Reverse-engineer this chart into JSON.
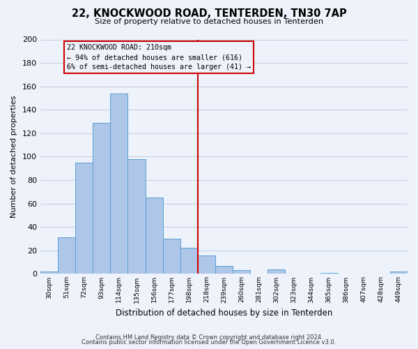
{
  "title": "22, KNOCKWOOD ROAD, TENTERDEN, TN30 7AP",
  "subtitle": "Size of property relative to detached houses in Tenterden",
  "xlabel": "Distribution of detached houses by size in Tenterden",
  "ylabel": "Number of detached properties",
  "footer_line1": "Contains HM Land Registry data © Crown copyright and database right 2024.",
  "footer_line2": "Contains public sector information licensed under the Open Government Licence v3.0.",
  "bin_labels": [
    "30sqm",
    "51sqm",
    "72sqm",
    "93sqm",
    "114sqm",
    "135sqm",
    "156sqm",
    "177sqm",
    "198sqm",
    "218sqm",
    "239sqm",
    "260sqm",
    "281sqm",
    "302sqm",
    "323sqm",
    "344sqm",
    "365sqm",
    "386sqm",
    "407sqm",
    "428sqm",
    "449sqm"
  ],
  "bar_heights": [
    2,
    31,
    95,
    129,
    154,
    98,
    65,
    30,
    22,
    16,
    7,
    3,
    0,
    4,
    0,
    0,
    1,
    0,
    0,
    0,
    2
  ],
  "bar_color": "#aec6e8",
  "bar_edge_color": "#5a9fd4",
  "ylim": [
    0,
    200
  ],
  "yticks": [
    0,
    20,
    40,
    60,
    80,
    100,
    120,
    140,
    160,
    180,
    200
  ],
  "vline_x_index": 8.5,
  "vline_color": "#cc0000",
  "annot_line1": "22 KNOCKWOOD ROAD: 210sqm",
  "annot_line2": "← 94% of detached houses are smaller (616)",
  "annot_line3": "6% of semi-detached houses are larger (41) →",
  "annot_box_edge_color": "#cc0000",
  "background_color": "#eef2fb",
  "grid_color": "#c8cfe0"
}
